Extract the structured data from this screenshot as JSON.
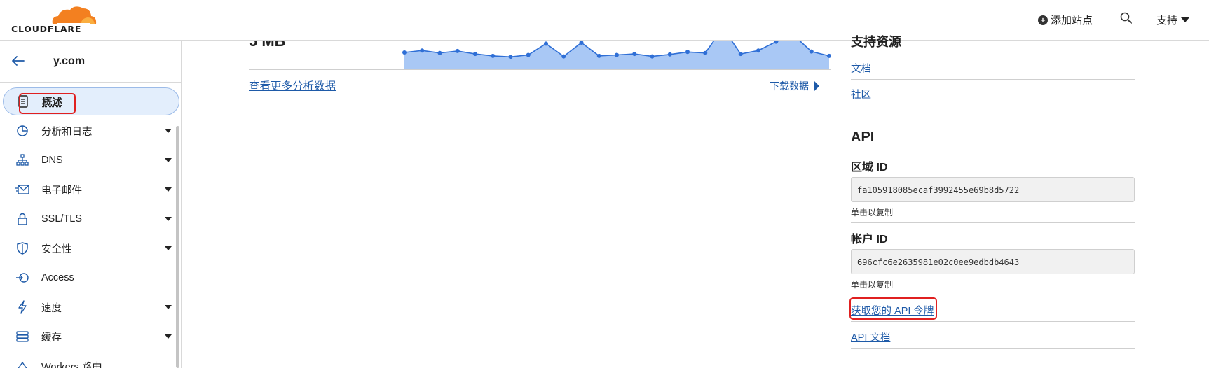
{
  "header": {
    "brand": "CLOUDFLARE",
    "add_site": "添加站点",
    "support": "支持",
    "icons": {
      "search": "search-icon",
      "plus": "plus-circle-icon",
      "caret": "chevron-down-icon"
    },
    "colors": {
      "logo_orange": "#f38020",
      "logo_light": "#faae40"
    }
  },
  "sidebar": {
    "zone": "y.com",
    "items": [
      {
        "label": "概述",
        "icon": "document-icon",
        "expandable": false,
        "active": true
      },
      {
        "label": "分析和日志",
        "icon": "pie-chart-icon",
        "expandable": true
      },
      {
        "label": "DNS",
        "icon": "network-icon",
        "expandable": true
      },
      {
        "label": "电子邮件",
        "icon": "mail-icon",
        "expandable": true
      },
      {
        "label": "SSL/TLS",
        "icon": "lock-icon",
        "expandable": true
      },
      {
        "label": "安全性",
        "icon": "shield-icon",
        "expandable": true
      },
      {
        "label": "Access",
        "icon": "access-icon",
        "expandable": false
      },
      {
        "label": "速度",
        "icon": "lightning-icon",
        "expandable": true
      },
      {
        "label": "缓存",
        "icon": "storage-icon",
        "expandable": true
      },
      {
        "label": "Workers 路由",
        "icon": "workers-icon",
        "expandable": false
      }
    ],
    "colors": {
      "active_bg": "#e3eefc",
      "highlight": "#e02020"
    }
  },
  "main": {
    "chart_partial_label": "5 MB",
    "more_analytics": "查看更多分析数据",
    "download_data": "下载数据",
    "colors": {
      "line": "#2f6fd6",
      "fill": "#a9c8f5",
      "link": "#1e5aa8"
    }
  },
  "chart_data": {
    "type": "area",
    "x": [
      1,
      2,
      3,
      4,
      5,
      6,
      7,
      8,
      9,
      10,
      11,
      12,
      13,
      14,
      15,
      16,
      17,
      18,
      19,
      20,
      21,
      22,
      23,
      24,
      25
    ],
    "values": [
      10,
      14,
      9,
      13,
      7,
      3,
      1,
      5,
      28,
      2,
      30,
      3,
      5,
      7,
      2,
      6,
      11,
      9,
      60,
      7,
      14,
      32,
      45,
      12,
      3
    ],
    "title": "",
    "xlabel": "",
    "ylabel": ""
  },
  "right": {
    "resources_title": "支持资源",
    "docs": "文档",
    "community": "社区",
    "api_title": "API",
    "zone_id_label": "区域 ID",
    "zone_id_value": "fa105918085ecaf3992455e69b8d5722",
    "copy_hint_1": "单击以复制",
    "account_id_label": "帐户 ID",
    "account_id_value": "696cfc6e2635981e02c0ee9edbdb4643",
    "copy_hint_2": "单击以复制",
    "get_token": "获取您的 API 令牌",
    "api_docs": "API 文档"
  }
}
